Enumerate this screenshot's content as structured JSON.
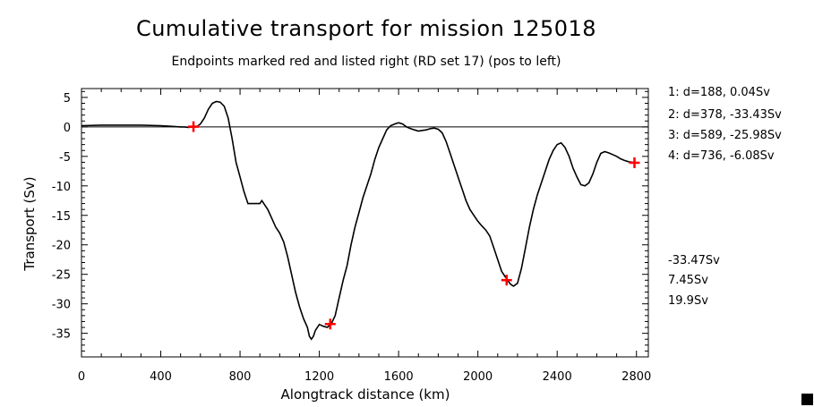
{
  "chart_data": {
    "type": "line",
    "title": "Cumulative transport for mission 125018",
    "subtitle": "Endpoints marked red and listed right (RD set 17) (pos to left)",
    "xlabel": "Alongtrack distance (km)",
    "ylabel": "Transport (Sv)",
    "xlim": [
      0,
      2860
    ],
    "ylim": [
      -39,
      6.5
    ],
    "xticks": [
      0,
      400,
      800,
      1200,
      1600,
      2000,
      2400,
      2800
    ],
    "xtick_labels": [
      "0",
      "400",
      "800",
      "1200",
      "1600",
      "2000",
      "2400",
      "2800"
    ],
    "yticks": [
      5,
      0,
      -5,
      -10,
      -15,
      -20,
      -25,
      -30,
      -35
    ],
    "ytick_labels": [
      "5",
      "0",
      "-5",
      "-10",
      "-15",
      "-20",
      "-25",
      "-30",
      "-35"
    ],
    "zero_line": true,
    "grid": false,
    "series": [
      {
        "color": "#000000",
        "x": [
          0,
          100,
          200,
          300,
          400,
          450,
          500,
          520,
          540,
          560,
          580,
          600,
          620,
          640,
          660,
          680,
          700,
          720,
          740,
          760,
          780,
          800,
          820,
          840,
          860,
          880,
          900,
          910,
          920,
          940,
          960,
          980,
          1000,
          1020,
          1040,
          1060,
          1080,
          1100,
          1120,
          1140,
          1150,
          1160,
          1170,
          1180,
          1200,
          1220,
          1240,
          1260,
          1280,
          1300,
          1320,
          1340,
          1360,
          1380,
          1400,
          1420,
          1440,
          1460,
          1480,
          1500,
          1520,
          1540,
          1560,
          1580,
          1600,
          1620,
          1640,
          1660,
          1680,
          1700,
          1720,
          1740,
          1760,
          1780,
          1800,
          1820,
          1840,
          1860,
          1880,
          1900,
          1920,
          1940,
          1960,
          1980,
          2000,
          2020,
          2040,
          2060,
          2080,
          2100,
          2120,
          2140,
          2150,
          2160,
          2170,
          2180,
          2200,
          2220,
          2240,
          2260,
          2280,
          2300,
          2320,
          2340,
          2360,
          2380,
          2400,
          2420,
          2440,
          2460,
          2480,
          2500,
          2520,
          2540,
          2560,
          2580,
          2600,
          2620,
          2640,
          2660,
          2680,
          2700,
          2720,
          2740,
          2760,
          2780,
          2800
        ],
        "y": [
          0.2,
          0.3,
          0.3,
          0.3,
          0.2,
          0.1,
          0.0,
          0.0,
          -0.1,
          0.0,
          0.0,
          0.5,
          1.5,
          3.0,
          4.0,
          4.3,
          4.2,
          3.5,
          1.5,
          -2.0,
          -6.0,
          -8.5,
          -11.0,
          -13.0,
          -13.0,
          -13.0,
          -13.0,
          -12.5,
          -13.0,
          -14.0,
          -15.5,
          -17.0,
          -18.0,
          -19.5,
          -22.0,
          -25.0,
          -28.0,
          -30.5,
          -32.5,
          -34.0,
          -35.5,
          -36.0,
          -35.5,
          -34.5,
          -33.5,
          -33.8,
          -34.0,
          -33.4,
          -32.0,
          -29.0,
          -26.0,
          -23.5,
          -20.0,
          -17.0,
          -14.5,
          -12.0,
          -10.0,
          -8.0,
          -5.5,
          -3.5,
          -2.0,
          -0.5,
          0.2,
          0.5,
          0.7,
          0.5,
          0.0,
          -0.3,
          -0.5,
          -0.7,
          -0.6,
          -0.5,
          -0.3,
          -0.2,
          -0.4,
          -1.0,
          -2.5,
          -4.5,
          -6.5,
          -8.5,
          -10.5,
          -12.5,
          -14.0,
          -15.0,
          -16.0,
          -16.8,
          -17.5,
          -18.5,
          -20.5,
          -22.5,
          -24.5,
          -25.5,
          -26.0,
          -26.5,
          -26.8,
          -27.0,
          -26.5,
          -24.0,
          -20.5,
          -17.0,
          -14.0,
          -11.5,
          -9.5,
          -7.5,
          -5.5,
          -4.0,
          -3.0,
          -2.7,
          -3.5,
          -5.0,
          -7.0,
          -8.5,
          -9.8,
          -10.0,
          -9.5,
          -8.0,
          -6.0,
          -4.5,
          -4.2,
          -4.4,
          -4.7,
          -5.0,
          -5.4,
          -5.7,
          -5.9,
          -6.0,
          -6.08
        ]
      }
    ],
    "endpoints": [
      {
        "x": 565,
        "y": 0.04
      },
      {
        "x": 1255,
        "y": -33.43
      },
      {
        "x": 2145,
        "y": -25.98
      },
      {
        "x": 2790,
        "y": -6.08
      }
    ],
    "endpoint_color": "#ff0000",
    "annotations": [
      "1: d=188, 0.04Sv",
      "2: d=378, -33.43Sv",
      "3: d=589, -25.98Sv",
      "4: d=736, -6.08Sv"
    ],
    "summary_values": [
      "-33.47Sv",
      "7.45Sv",
      "19.9Sv"
    ]
  }
}
